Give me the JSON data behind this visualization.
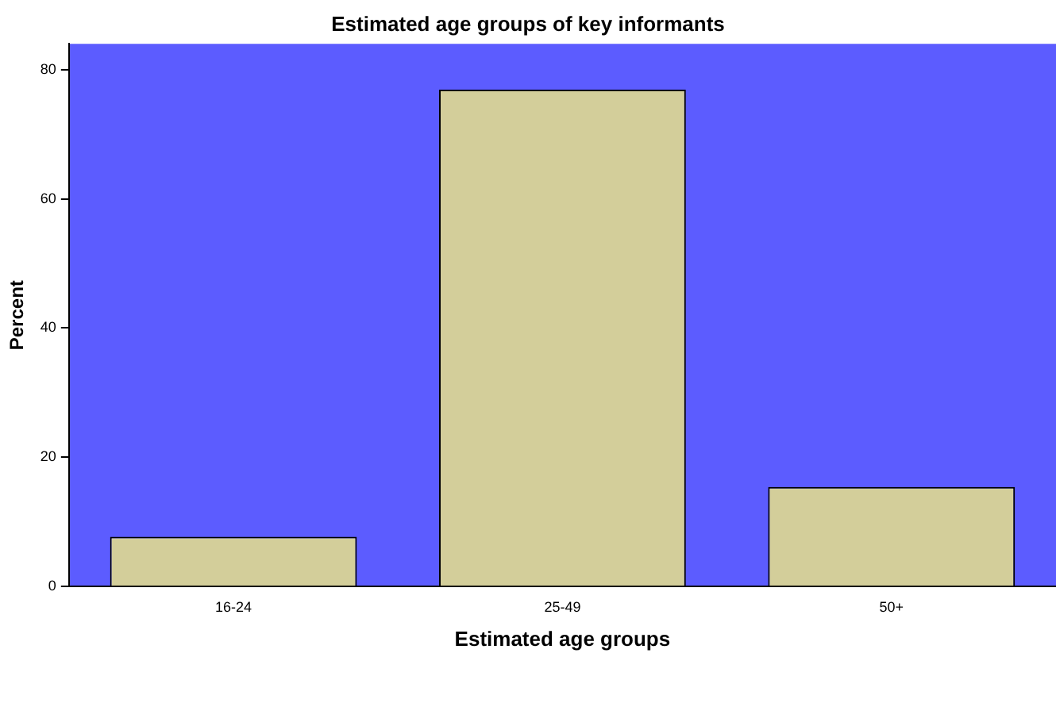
{
  "chart_data": {
    "type": "bar",
    "title": "Estimated age groups of key informants",
    "xlabel": "Estimated age groups",
    "ylabel": "Percent",
    "categories": [
      "16-24",
      "25-49",
      "50+"
    ],
    "values": [
      7.7,
      76.9,
      15.4
    ],
    "color": "#d3ce9a",
    "ylim": [
      0,
      84
    ],
    "yticks": [
      0,
      20,
      40,
      60,
      80
    ],
    "grid": false,
    "legend": false
  }
}
